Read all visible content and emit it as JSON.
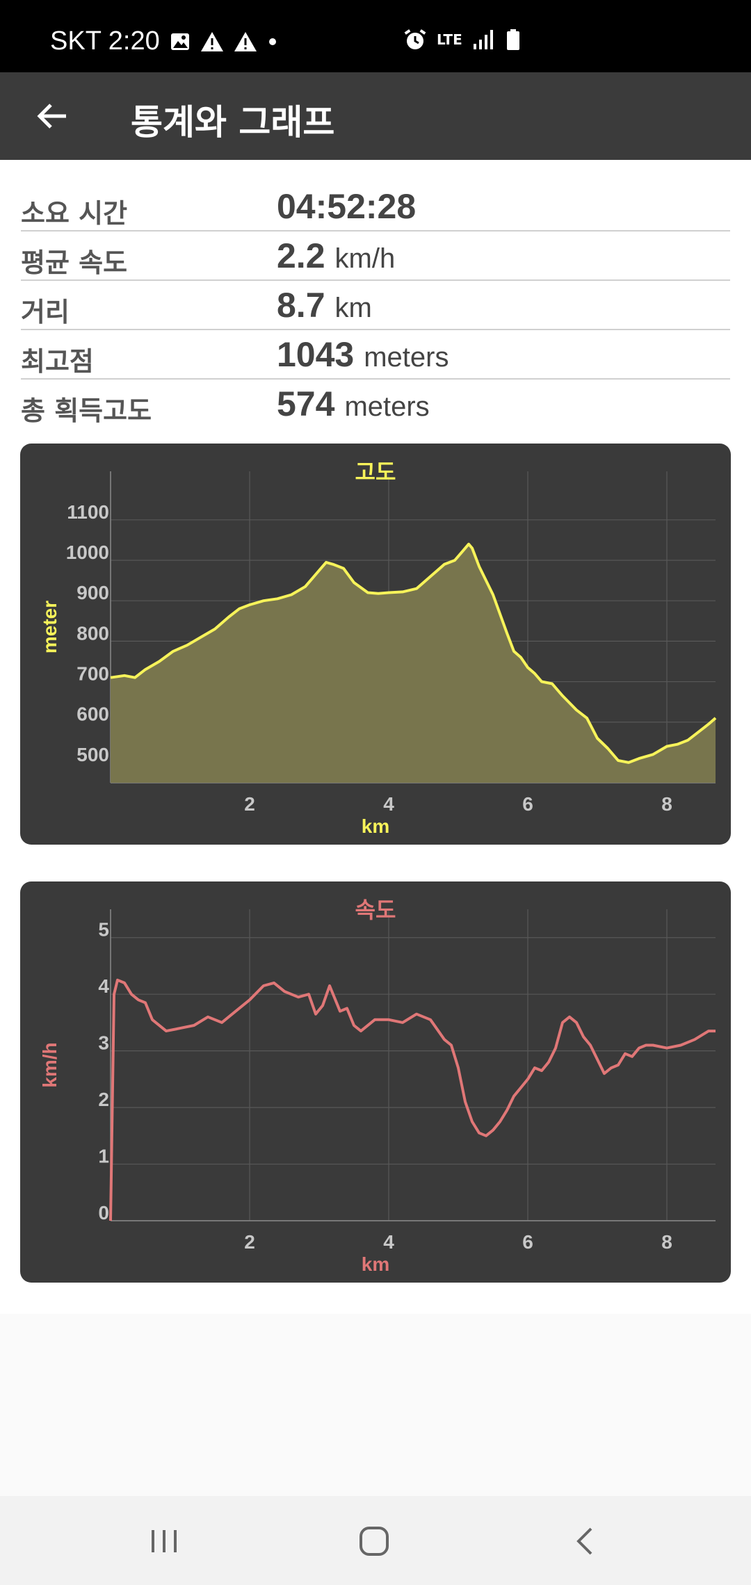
{
  "status_bar": {
    "carrier_time": "SKT 2:20",
    "network": "LTE",
    "icons": [
      "image-icon",
      "warning-icon",
      "warning-icon",
      "dot-icon",
      "alarm-icon",
      "lte-icon",
      "signal-icon",
      "battery-icon"
    ]
  },
  "appbar": {
    "title": "통계와 그래프",
    "back_icon": "arrow-left-icon"
  },
  "stats": [
    {
      "label": "소요 시간",
      "value": "04:52:28",
      "unit": ""
    },
    {
      "label": "평균 속도",
      "value": "2.2",
      "unit": "km/h"
    },
    {
      "label": "거리",
      "value": "8.7",
      "unit": "km"
    },
    {
      "label": "최고점",
      "value": "1043",
      "unit": "meters"
    },
    {
      "label": "총 획득고도",
      "value": "574",
      "unit": "meters"
    }
  ],
  "chart_data": [
    {
      "type": "area",
      "title": "고도",
      "xlabel": "km",
      "ylabel": "meter",
      "color": "#f7f35a",
      "fill": "#78754d",
      "xlim": [
        0,
        8.7
      ],
      "ylim": [
        450,
        1220
      ],
      "xticks": [
        2,
        4,
        6,
        8
      ],
      "yticks": [
        500,
        600,
        700,
        800,
        900,
        1000,
        1100
      ],
      "grid": true,
      "x": [
        0,
        0.2,
        0.35,
        0.5,
        0.7,
        0.9,
        1.1,
        1.3,
        1.5,
        1.7,
        1.85,
        2.0,
        2.2,
        2.4,
        2.6,
        2.8,
        2.9,
        3.0,
        3.1,
        3.2,
        3.35,
        3.5,
        3.7,
        3.85,
        4.0,
        4.2,
        4.4,
        4.6,
        4.8,
        4.95,
        5.05,
        5.15,
        5.2,
        5.3,
        5.5,
        5.7,
        5.8,
        5.9,
        6.0,
        6.1,
        6.2,
        6.35,
        6.5,
        6.7,
        6.85,
        7.0,
        7.15,
        7.3,
        7.45,
        7.6,
        7.8,
        8.0,
        8.15,
        8.3,
        8.45,
        8.6,
        8.7
      ],
      "y": [
        710,
        715,
        710,
        730,
        750,
        775,
        790,
        810,
        830,
        860,
        880,
        890,
        900,
        905,
        915,
        935,
        955,
        975,
        995,
        990,
        980,
        945,
        920,
        918,
        920,
        922,
        930,
        960,
        990,
        1000,
        1020,
        1040,
        1030,
        985,
        915,
        820,
        775,
        760,
        735,
        720,
        700,
        695,
        665,
        630,
        610,
        560,
        535,
        505,
        500,
        510,
        520,
        540,
        545,
        555,
        575,
        595,
        610
      ]
    },
    {
      "type": "line",
      "title": "속도",
      "xlabel": "km",
      "ylabel": "km/h",
      "color": "#e07777",
      "xlim": [
        0,
        8.7
      ],
      "ylim": [
        0,
        5.5
      ],
      "xticks": [
        2,
        4,
        6,
        8
      ],
      "yticks": [
        0,
        1,
        2,
        3,
        4,
        5
      ],
      "grid": true,
      "x": [
        0,
        0.05,
        0.1,
        0.2,
        0.3,
        0.4,
        0.5,
        0.6,
        0.8,
        1.0,
        1.2,
        1.4,
        1.6,
        1.8,
        2.0,
        2.2,
        2.35,
        2.5,
        2.7,
        2.85,
        2.95,
        3.05,
        3.15,
        3.3,
        3.4,
        3.5,
        3.6,
        3.8,
        4.0,
        4.2,
        4.4,
        4.6,
        4.8,
        4.9,
        5.0,
        5.1,
        5.2,
        5.3,
        5.4,
        5.5,
        5.6,
        5.7,
        5.8,
        5.9,
        6.0,
        6.1,
        6.2,
        6.3,
        6.4,
        6.5,
        6.6,
        6.7,
        6.8,
        6.9,
        7.0,
        7.1,
        7.2,
        7.3,
        7.4,
        7.5,
        7.6,
        7.7,
        7.8,
        8.0,
        8.2,
        8.4,
        8.6,
        8.7
      ],
      "y": [
        0,
        4.0,
        4.25,
        4.2,
        4.0,
        3.9,
        3.85,
        3.55,
        3.35,
        3.4,
        3.45,
        3.6,
        3.5,
        3.7,
        3.9,
        4.15,
        4.2,
        4.05,
        3.95,
        4.0,
        3.65,
        3.8,
        4.15,
        3.7,
        3.75,
        3.45,
        3.35,
        3.55,
        3.55,
        3.5,
        3.65,
        3.55,
        3.2,
        3.1,
        2.7,
        2.1,
        1.75,
        1.55,
        1.5,
        1.6,
        1.75,
        1.95,
        2.2,
        2.35,
        2.5,
        2.7,
        2.65,
        2.8,
        3.05,
        3.5,
        3.6,
        3.5,
        3.25,
        3.1,
        2.85,
        2.6,
        2.7,
        2.75,
        2.95,
        2.9,
        3.05,
        3.1,
        3.1,
        3.05,
        3.1,
        3.2,
        3.35,
        3.35
      ]
    }
  ],
  "nav": {
    "recent_icon": "recent-apps-icon",
    "home_icon": "home-icon",
    "back_icon": "back-icon"
  }
}
